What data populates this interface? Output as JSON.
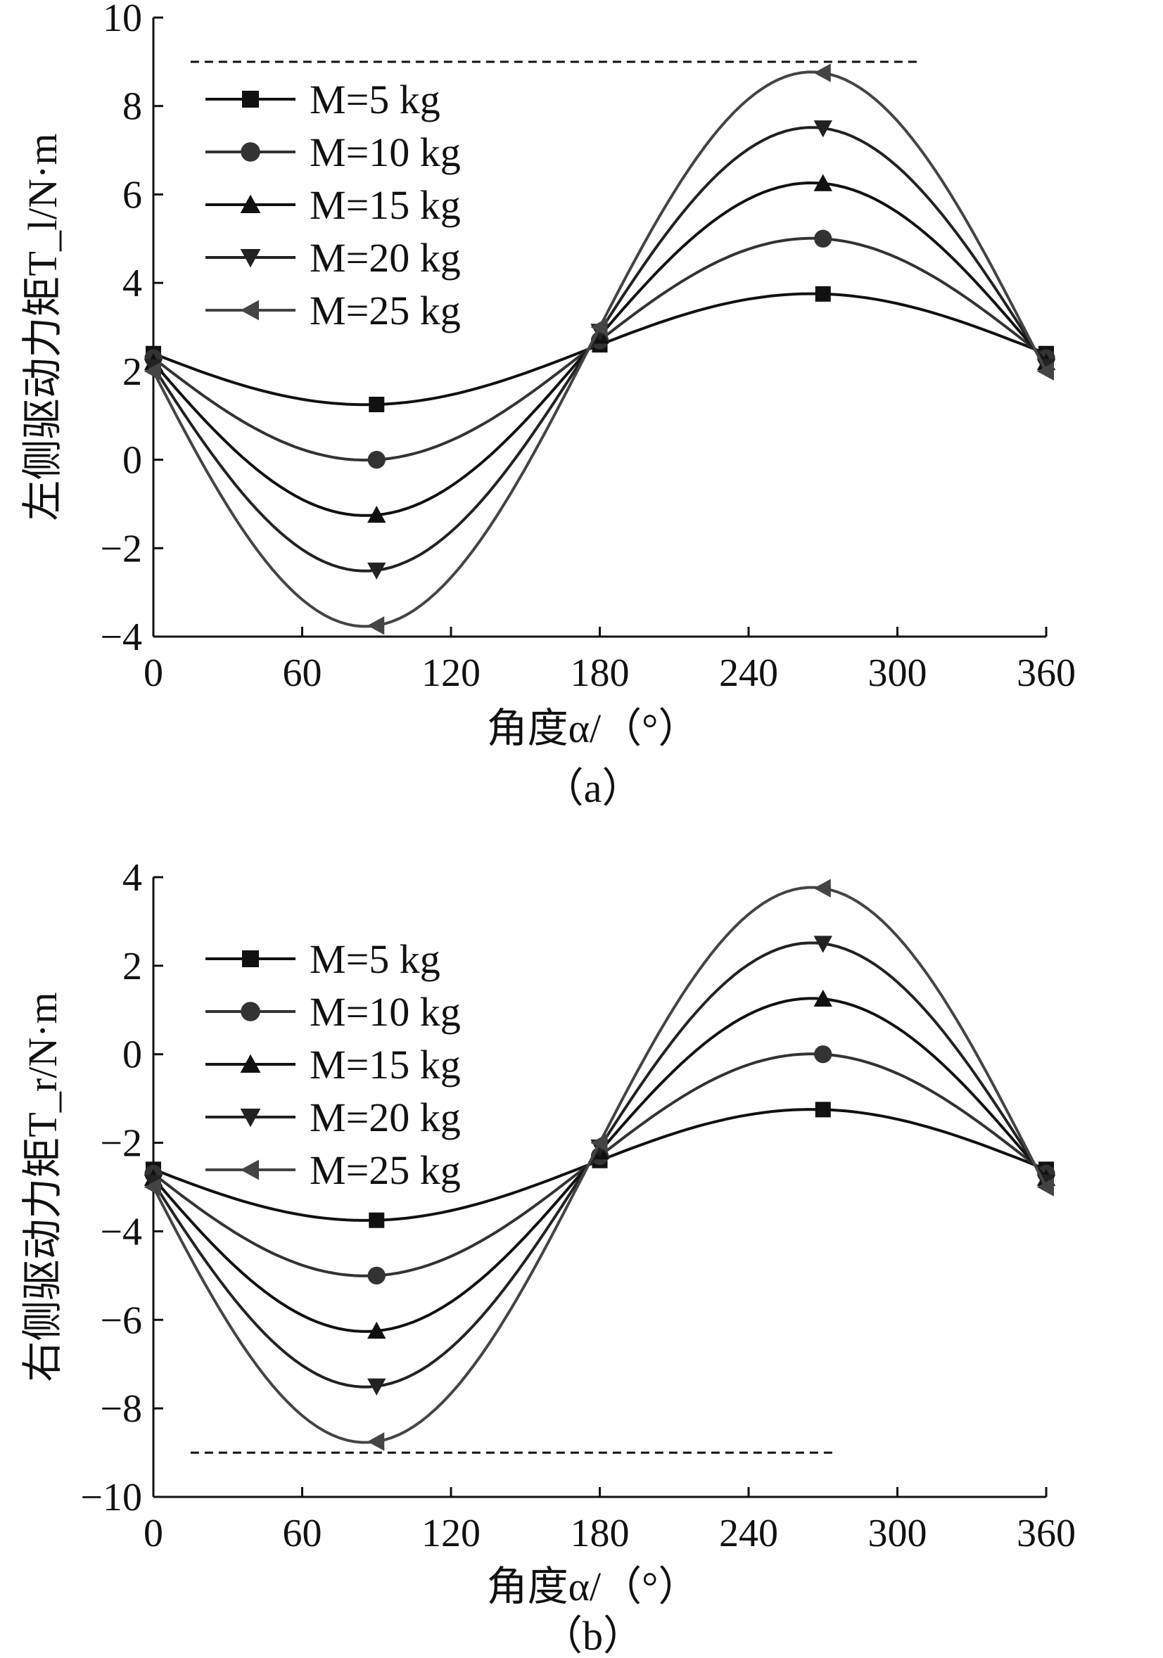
{
  "chart_data": [
    {
      "type": "line",
      "caption": "（a）",
      "xlabel": "角度α/（°）",
      "ylabel": "左侧驱动力矩T_l/N·m",
      "xlim": [
        0,
        360
      ],
      "ylim": [
        -4,
        10
      ],
      "xticks": [
        0,
        60,
        120,
        180,
        240,
        300,
        360
      ],
      "yticks": [
        -4,
        -2,
        0,
        2,
        4,
        6,
        8,
        10
      ],
      "xtick_labels": [
        "0",
        "60",
        "120",
        "180",
        "240",
        "300",
        "360"
      ],
      "ytick_labels": [
        "−4",
        "−2",
        "0",
        "2",
        "4",
        "6",
        "8",
        "10"
      ],
      "legend_position": "top-left",
      "reference_line": {
        "y": 9,
        "x_range": [
          15,
          310
        ],
        "style": "dashed"
      },
      "series": [
        {
          "name": "M=5 kg",
          "marker": "square",
          "color": "#111111",
          "x": [
            0,
            90,
            180,
            270,
            360
          ],
          "y": [
            2.4,
            1.25,
            2.6,
            3.75,
            2.4
          ]
        },
        {
          "name": "M=10 kg",
          "marker": "circle",
          "color": "#333333",
          "x": [
            0,
            90,
            180,
            270,
            360
          ],
          "y": [
            2.3,
            0.0,
            2.7,
            5.0,
            2.3
          ]
        },
        {
          "name": "M=15 kg",
          "marker": "triangle-up",
          "color": "#111111",
          "x": [
            0,
            90,
            180,
            270,
            360
          ],
          "y": [
            2.2,
            -1.25,
            2.8,
            6.25,
            2.2
          ]
        },
        {
          "name": "M=20 kg",
          "marker": "triangle-down",
          "color": "#222222",
          "x": [
            0,
            90,
            180,
            270,
            360
          ],
          "y": [
            2.1,
            -2.5,
            2.9,
            7.5,
            2.1
          ]
        },
        {
          "name": "M=25 kg",
          "marker": "triangle-left",
          "color": "#444444",
          "x": [
            0,
            90,
            180,
            270,
            360
          ],
          "y": [
            2.0,
            -3.75,
            3.0,
            8.75,
            2.0
          ]
        }
      ]
    },
    {
      "type": "line",
      "caption": "（b）",
      "xlabel": "角度α/（°）",
      "ylabel": "右侧驱动力矩T_r/N·m",
      "xlim": [
        0,
        360
      ],
      "ylim": [
        -10,
        4
      ],
      "xticks": [
        0,
        60,
        120,
        180,
        240,
        300,
        360
      ],
      "yticks": [
        -10,
        -8,
        -6,
        -4,
        -2,
        0,
        2,
        4
      ],
      "xtick_labels": [
        "0",
        "60",
        "120",
        "180",
        "240",
        "300",
        "360"
      ],
      "ytick_labels": [
        "−10",
        "−8",
        "−6",
        "−4",
        "−2",
        "0",
        "2",
        "4"
      ],
      "legend_position": "top-left",
      "reference_line": {
        "y": -9,
        "x_range": [
          15,
          275
        ],
        "style": "dashed"
      },
      "series": [
        {
          "name": "M=5 kg",
          "marker": "square",
          "color": "#111111",
          "x": [
            0,
            90,
            180,
            270,
            360
          ],
          "y": [
            -2.6,
            -3.75,
            -2.4,
            -1.25,
            -2.6
          ]
        },
        {
          "name": "M=10 kg",
          "marker": "circle",
          "color": "#333333",
          "x": [
            0,
            90,
            180,
            270,
            360
          ],
          "y": [
            -2.7,
            -5.0,
            -2.3,
            0.0,
            -2.7
          ]
        },
        {
          "name": "M=15 kg",
          "marker": "triangle-up",
          "color": "#111111",
          "x": [
            0,
            90,
            180,
            270,
            360
          ],
          "y": [
            -2.8,
            -6.25,
            -2.2,
            1.25,
            -2.8
          ]
        },
        {
          "name": "M=20 kg",
          "marker": "triangle-down",
          "color": "#222222",
          "x": [
            0,
            90,
            180,
            270,
            360
          ],
          "y": [
            -2.9,
            -7.5,
            -2.1,
            2.5,
            -2.9
          ]
        },
        {
          "name": "M=25 kg",
          "marker": "triangle-left",
          "color": "#444444",
          "x": [
            0,
            90,
            180,
            270,
            360
          ],
          "y": [
            -3.0,
            -8.75,
            -2.0,
            3.75,
            -3.0
          ]
        }
      ]
    }
  ]
}
